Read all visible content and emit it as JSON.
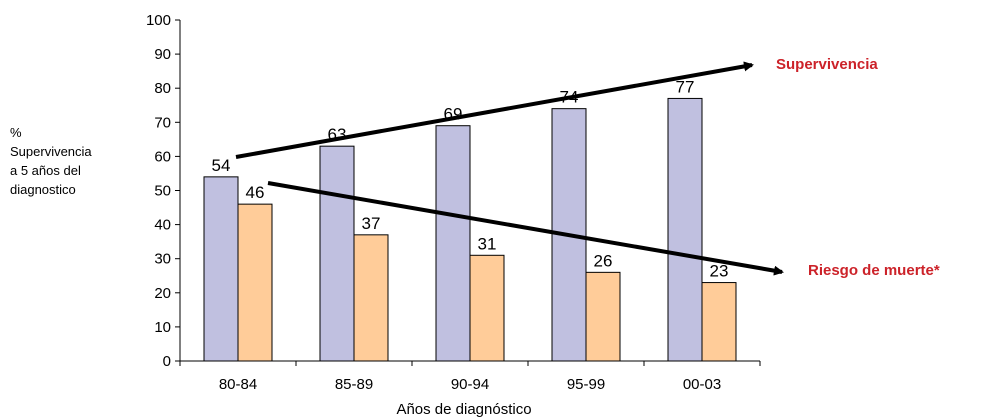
{
  "chart_data": {
    "type": "bar",
    "categories": [
      "80-84",
      "85-89",
      "90-94",
      "95-99",
      "00-03"
    ],
    "series": [
      {
        "values": [
          54,
          63,
          69,
          74,
          77
        ],
        "color": "#c0c0e0"
      },
      {
        "values": [
          46,
          37,
          31,
          26,
          23
        ],
        "color": "#ffcc99"
      }
    ],
    "xlabel": "Años de diagnóstico",
    "ylabel_lines": [
      "%",
      "Supervivencia",
      "a 5 años del",
      "diagnostico"
    ],
    "ylim": [
      0,
      100
    ],
    "yticks": [
      0,
      10,
      20,
      30,
      40,
      50,
      60,
      70,
      80,
      90,
      100
    ],
    "grid": false,
    "annotations": {
      "supervivencia": "Supervivencia",
      "riesgo": "Riesgo de muerte*"
    },
    "annotation_color": "#cc2229"
  }
}
